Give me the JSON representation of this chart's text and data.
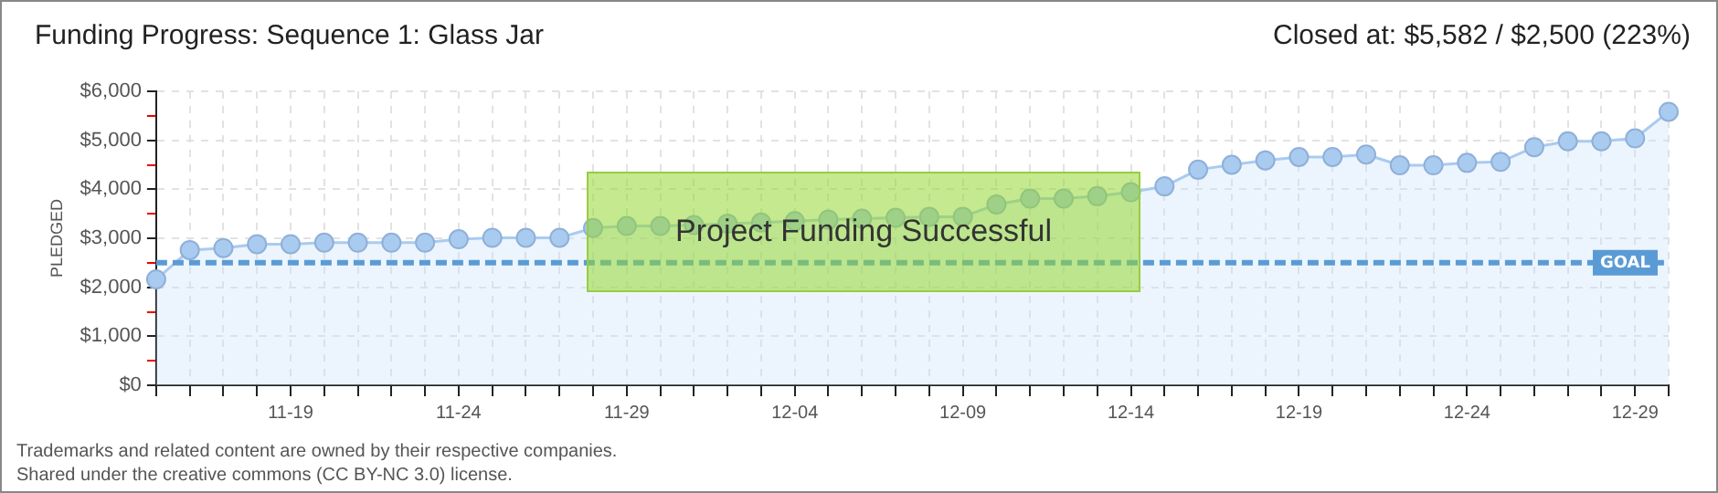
{
  "chart_data": {
    "type": "area",
    "title": "Funding Progress: Sequence 1: Glass Jar",
    "subtitle": "Closed at: $5,582 / $2,500 (223%)",
    "ylabel": "PLEDGED",
    "categories": [
      null,
      null,
      null,
      null,
      "11-19",
      null,
      null,
      null,
      null,
      "11-24",
      null,
      null,
      null,
      null,
      "11-29",
      null,
      null,
      null,
      null,
      "12-04",
      null,
      null,
      null,
      null,
      "12-09",
      null,
      null,
      null,
      null,
      "12-14",
      null,
      null,
      null,
      null,
      "12-19",
      null,
      null,
      null,
      null,
      "12-24",
      null,
      null,
      null,
      null,
      "12-29",
      null
    ],
    "series": [
      {
        "color": "#a9cbf0",
        "values": [
          2160,
          2760,
          2800,
          2880,
          2880,
          2910,
          2910,
          2910,
          2910,
          2980,
          3010,
          3010,
          3010,
          3210,
          3250,
          3250,
          3270,
          3300,
          3320,
          3350,
          3380,
          3400,
          3420,
          3440,
          3440,
          3690,
          3810,
          3810,
          3860,
          3940,
          4060,
          4400,
          4500,
          4590,
          4660,
          4660,
          4710,
          4490,
          4490,
          4540,
          4560,
          4860,
          4980,
          4980,
          5040,
          5582
        ]
      }
    ],
    "ylim": [
      0,
      6000
    ],
    "yticks": [
      {
        "value": 0,
        "label": "$0"
      },
      {
        "value": 500,
        "label": null
      },
      {
        "value": 1000,
        "label": "$1,000"
      },
      {
        "value": 1500,
        "label": null
      },
      {
        "value": 2000,
        "label": "$2,000"
      },
      {
        "value": 2500,
        "label": null
      },
      {
        "value": 3000,
        "label": "$3,000"
      },
      {
        "value": 3500,
        "label": null
      },
      {
        "value": 4000,
        "label": "$4,000"
      },
      {
        "value": 4500,
        "label": null
      },
      {
        "value": 5000,
        "label": "$5,000"
      },
      {
        "value": 5500,
        "label": null
      },
      {
        "value": 6000,
        "label": "$6,000"
      }
    ],
    "ref_lines": [
      {
        "axis": "y",
        "value": 2500,
        "label": "GOAL",
        "color": "#5b9bd5",
        "line_style": "dashed"
      }
    ],
    "annotations": [
      "Project Funding Successful",
      "Trademarks and related content are owned by their respective companies.",
      "Shared under the creative commons (CC BY-NC 3.0) license."
    ],
    "grid": true,
    "legend": false,
    "marker": "circle",
    "line_style": "solid"
  }
}
